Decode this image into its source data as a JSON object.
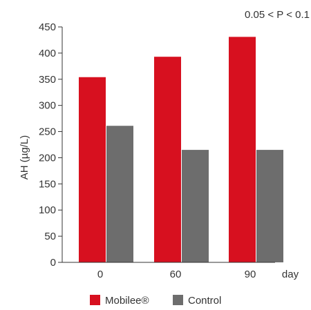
{
  "chart_data": {
    "type": "bar",
    "annotation": "0.05 < P < 0.1",
    "xlabel": "day",
    "ylabel": "AH (µg/L)",
    "categories": [
      "0",
      "60",
      "90"
    ],
    "ylim": [
      0,
      450
    ],
    "yticks": [
      0,
      50,
      100,
      150,
      200,
      250,
      300,
      350,
      400,
      450
    ],
    "grid": false,
    "legend_position": "bottom-center",
    "series": [
      {
        "name": "Mobilee®",
        "color": "#d7101f",
        "values": [
          354,
          393,
          431
        ]
      },
      {
        "name": "Control",
        "color": "#6d6d6d",
        "values": [
          261,
          215,
          215
        ]
      }
    ]
  }
}
